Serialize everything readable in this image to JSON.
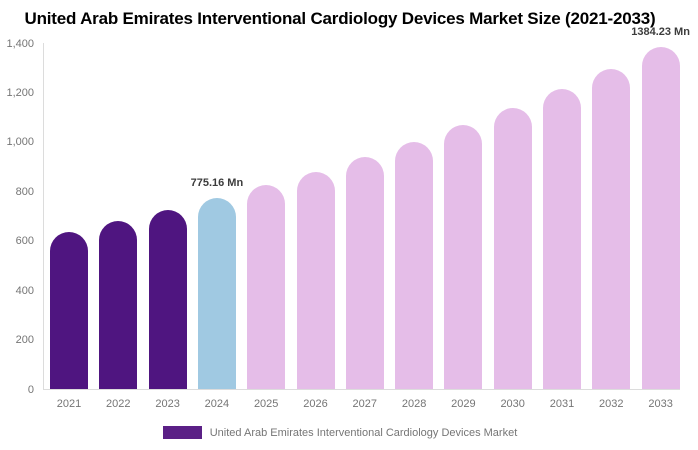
{
  "colors": {
    "background": "#FFFFFF",
    "title-text": "#000000",
    "historical-bar": "#4F1580",
    "highlight-bar": "#A0C9E2",
    "forecast-bar": "#E5BDE8",
    "legend-swatch": "#5B2086",
    "axis-line": "#DCDCDC",
    "tick-label": "#757575",
    "data-label": "#3C3C3C"
  },
  "chart_data": {
    "type": "bar",
    "title": "United Arab Emirates Interventional Cardiology Devices Market Size (2021-2033)",
    "xlabel": "",
    "ylabel": "",
    "unit": "Mn",
    "categories": [
      "2021",
      "2022",
      "2023",
      "2024",
      "2025",
      "2026",
      "2027",
      "2028",
      "2029",
      "2030",
      "2031",
      "2032",
      "2033"
    ],
    "series": [
      {
        "name": "United Arab Emirates Interventional Cardiology Devices Market",
        "values": [
          636,
          682,
          727,
          775.16,
          827,
          882,
          940,
          1003,
          1070,
          1141,
          1217,
          1298,
          1384.23
        ]
      }
    ],
    "bar_roles": [
      "historical",
      "historical",
      "historical",
      "highlight",
      "forecast",
      "forecast",
      "forecast",
      "forecast",
      "forecast",
      "forecast",
      "forecast",
      "forecast",
      "forecast"
    ],
    "annotations": [
      {
        "category": "2024",
        "index": 3,
        "text": "775.16 Mn"
      },
      {
        "category": "2033",
        "index": 12,
        "text": "1384.23 Mn"
      }
    ],
    "ylim": [
      0,
      1400
    ],
    "yticks": [
      {
        "value": 0,
        "label": "0"
      },
      {
        "value": 200,
        "label": "200"
      },
      {
        "value": 400,
        "label": "400"
      },
      {
        "value": 600,
        "label": "600"
      },
      {
        "value": 800,
        "label": "800"
      },
      {
        "value": 1000,
        "label": "1,000"
      },
      {
        "value": 1200,
        "label": "1,200"
      },
      {
        "value": 1400,
        "label": "1,400"
      }
    ],
    "grid": false,
    "legend": {
      "position": "bottom",
      "label": "United Arab Emirates Interventional Cardiology Devices Market"
    }
  }
}
